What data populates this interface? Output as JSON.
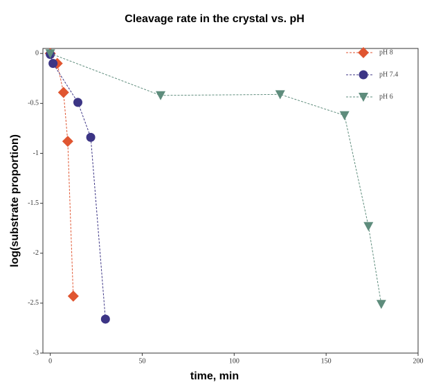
{
  "chart_data": {
    "type": "line",
    "title": "Cleavage rate in the crystal vs. pH",
    "x_label": "time, min",
    "y_label": "log(substrate proportion)",
    "xlim": [
      -4,
      200
    ],
    "ylim": [
      -3,
      0.05
    ],
    "xticks": [
      0,
      50,
      100,
      150,
      200
    ],
    "yticks": [
      0,
      -0.5,
      -1,
      -1.5,
      -2,
      -2.5,
      -3
    ],
    "legend": "upper right",
    "series": [
      {
        "name": "pH 8",
        "color": "#e05530",
        "marker": "diamond",
        "x": [
          0,
          3.8,
          7.2,
          9.5,
          12.5
        ],
        "values": [
          0,
          -0.1,
          -0.39,
          -0.88,
          -2.43
        ]
      },
      {
        "name": "pH 7.4",
        "color": "#3c3585",
        "marker": "circle",
        "x": [
          0,
          1.5,
          15,
          22,
          30
        ],
        "values": [
          -0.01,
          -0.1,
          -0.49,
          -0.84,
          -2.66
        ]
      },
      {
        "name": "pH 6",
        "color": "#5e8c7c",
        "marker": "triangle-down",
        "x": [
          0,
          60,
          125,
          160,
          173,
          180
        ],
        "values": [
          0,
          -0.42,
          -0.41,
          -0.62,
          -1.73,
          -2.51
        ]
      }
    ]
  }
}
